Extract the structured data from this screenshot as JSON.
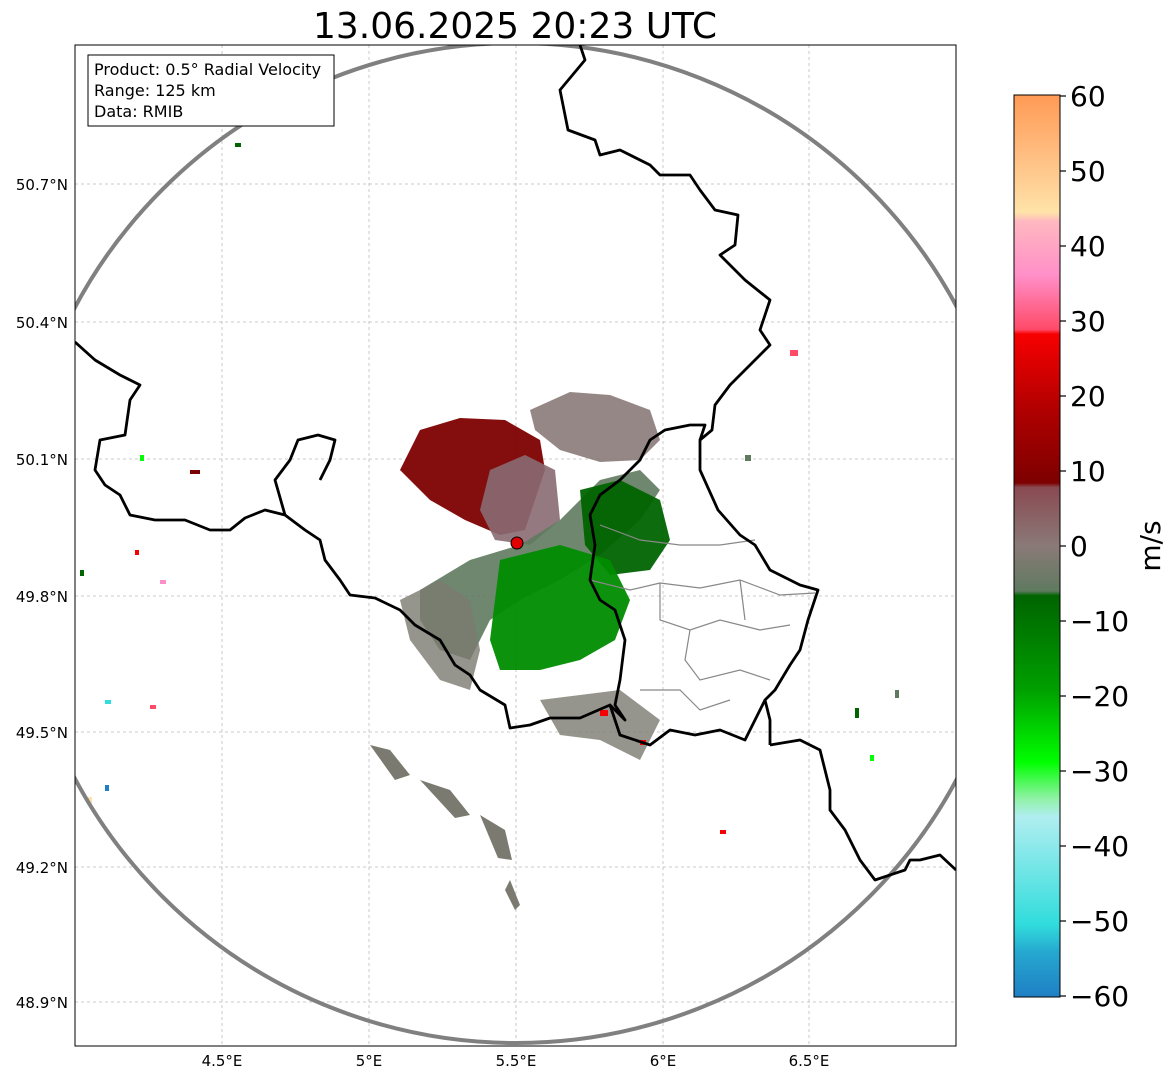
{
  "title": "13.06.2025 20:23 UTC",
  "info": {
    "product": "Product: 0.5° Radial Velocity",
    "range": "Range: 125 km",
    "data": "Data: RMIB"
  },
  "axes": {
    "lat_labels": [
      "50.7°N",
      "50.4°N",
      "50.1°N",
      "49.8°N",
      "49.5°N",
      "49.2°N",
      "48.9°N"
    ],
    "lon_labels": [
      "4.5°E",
      "5°E",
      "5.5°E",
      "6°E",
      "6.5°E"
    ]
  },
  "colorbar": {
    "unit": "m/s",
    "tick_labels": [
      "60",
      "50",
      "40",
      "30",
      "20",
      "10",
      "0",
      "−10",
      "−20",
      "−30",
      "−40",
      "−50",
      "−60"
    ],
    "colors": {
      "orange": "#ff9a55",
      "peach": "#ffd9a0",
      "pink": "#ff8fc8",
      "salmon": "#ff4a68",
      "red": "#f70000",
      "darkred": "#7d0000",
      "mauve": "#8a6a72",
      "grey": "#8a7a78",
      "greygreen": "#5f7a5f",
      "darkgreen": "#006400",
      "green": "#00b000",
      "lime": "#00ff00",
      "lightgreen": "#90f2a6",
      "lightcyan": "#b0eef0",
      "cyan": "#30dcdc",
      "blue": "#1f7fc4"
    }
  },
  "radar_site": {
    "name": "radar-site",
    "color": "#e00000"
  }
}
